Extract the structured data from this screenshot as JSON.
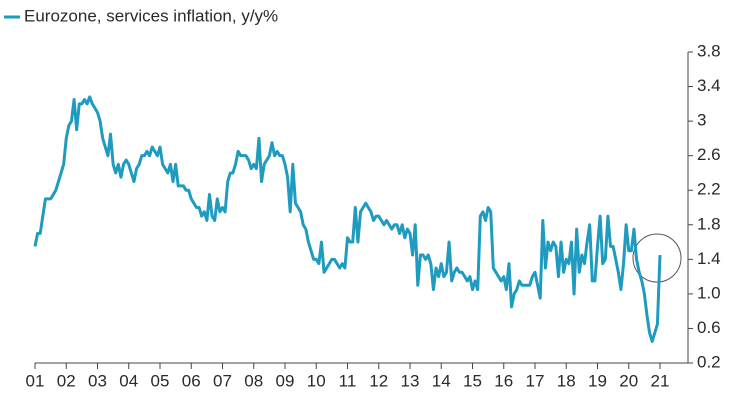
{
  "chart_data": {
    "type": "line",
    "categories": [
      "01",
      null,
      null,
      null,
      null,
      null,
      null,
      null,
      null,
      null,
      null,
      null,
      "02",
      null,
      null,
      null,
      null,
      null,
      null,
      null,
      null,
      null,
      null,
      null,
      "03",
      null,
      null,
      null,
      null,
      null,
      null,
      null,
      null,
      null,
      null,
      null,
      "04",
      null,
      null,
      null,
      null,
      null,
      null,
      null,
      null,
      null,
      null,
      null,
      "05",
      null,
      null,
      null,
      null,
      null,
      null,
      null,
      null,
      null,
      null,
      null,
      "06",
      null,
      null,
      null,
      null,
      null,
      null,
      null,
      null,
      null,
      null,
      null,
      "07",
      null,
      null,
      null,
      null,
      null,
      null,
      null,
      null,
      null,
      null,
      null,
      "08",
      null,
      null,
      null,
      null,
      null,
      null,
      null,
      null,
      null,
      null,
      null,
      "09",
      null,
      null,
      null,
      null,
      null,
      null,
      null,
      null,
      null,
      null,
      null,
      "10",
      null,
      null,
      null,
      null,
      null,
      null,
      null,
      null,
      null,
      null,
      null,
      "11",
      null,
      null,
      null,
      null,
      null,
      null,
      null,
      null,
      null,
      null,
      null,
      "12",
      null,
      null,
      null,
      null,
      null,
      null,
      null,
      null,
      null,
      null,
      null,
      "13",
      null,
      null,
      null,
      null,
      null,
      null,
      null,
      null,
      null,
      null,
      null,
      "14",
      null,
      null,
      null,
      null,
      null,
      null,
      null,
      null,
      null,
      null,
      null,
      "15",
      null,
      null,
      null,
      null,
      null,
      null,
      null,
      null,
      null,
      null,
      null,
      "16",
      null,
      null,
      null,
      null,
      null,
      null,
      null,
      null,
      null,
      null,
      null,
      "17",
      null,
      null,
      null,
      null,
      null,
      null,
      null,
      null,
      null,
      null,
      null,
      "18",
      null,
      null,
      null,
      null,
      null,
      null,
      null,
      null,
      null,
      null,
      null,
      "19",
      null,
      null,
      null,
      null,
      null,
      null,
      null,
      null,
      null,
      null,
      null,
      "20",
      null,
      null,
      null,
      null,
      null,
      null,
      null,
      null,
      null,
      null,
      null,
      "21"
    ],
    "series": [
      {
        "name": "Eurozone, services inflation, y/y%",
        "color": "#1e9bbf",
        "values": [
          1.55,
          1.7,
          1.7,
          1.9,
          2.1,
          2.1,
          2.1,
          2.15,
          2.2,
          2.3,
          2.4,
          2.5,
          2.8,
          2.95,
          3.0,
          3.25,
          2.9,
          3.2,
          3.2,
          3.25,
          3.2,
          3.28,
          3.2,
          3.15,
          3.1,
          3.0,
          2.8,
          2.7,
          2.6,
          2.85,
          2.5,
          2.4,
          2.5,
          2.35,
          2.5,
          2.55,
          2.5,
          2.4,
          2.3,
          2.45,
          2.5,
          2.6,
          2.6,
          2.65,
          2.6,
          2.7,
          2.65,
          2.6,
          2.7,
          2.5,
          2.45,
          2.4,
          2.5,
          2.3,
          2.5,
          2.25,
          2.25,
          2.25,
          2.2,
          2.2,
          2.1,
          2.05,
          2.0,
          2.0,
          1.9,
          1.95,
          1.85,
          2.15,
          1.9,
          1.85,
          2.1,
          1.95,
          2.0,
          1.95,
          2.3,
          2.4,
          2.4,
          2.5,
          2.65,
          2.6,
          2.6,
          2.6,
          2.55,
          2.45,
          2.5,
          2.45,
          2.8,
          2.3,
          2.5,
          2.55,
          2.6,
          2.75,
          2.6,
          2.65,
          2.6,
          2.6,
          2.5,
          2.35,
          1.95,
          2.5,
          2.05,
          2.0,
          1.95,
          1.8,
          1.75,
          1.6,
          1.5,
          1.4,
          1.4,
          1.35,
          1.6,
          1.25,
          1.3,
          1.35,
          1.4,
          1.4,
          1.35,
          1.3,
          1.35,
          1.3,
          1.65,
          1.6,
          1.6,
          2.0,
          1.6,
          1.95,
          2.0,
          2.05,
          2.0,
          1.95,
          1.85,
          1.9,
          1.9,
          1.85,
          1.8,
          1.85,
          1.8,
          1.75,
          1.8,
          1.8,
          1.7,
          1.8,
          1.65,
          1.75,
          1.7,
          1.45,
          1.8,
          1.1,
          1.45,
          1.45,
          1.4,
          1.45,
          1.35,
          1.05,
          1.3,
          1.2,
          1.35,
          1.2,
          1.25,
          1.6,
          1.15,
          1.25,
          1.3,
          1.25,
          1.25,
          1.2,
          1.15,
          1.2,
          1.05,
          1.15,
          1.05,
          1.9,
          1.95,
          1.85,
          2.0,
          1.95,
          1.3,
          1.25,
          1.2,
          1.15,
          1.2,
          1.05,
          1.35,
          0.85,
          1.0,
          1.05,
          1.15,
          1.1,
          1.1,
          1.1,
          1.1,
          1.2,
          1.25,
          1.1,
          0.95,
          1.85,
          1.3,
          1.6,
          1.5,
          1.6,
          1.55,
          1.2,
          1.6,
          1.25,
          1.4,
          1.35,
          1.6,
          1.0,
          1.75,
          1.25,
          1.45,
          1.35,
          1.6,
          1.8,
          1.15,
          1.15,
          1.55,
          1.9,
          1.35,
          1.4,
          1.9,
          1.55,
          1.55,
          1.4,
          1.25,
          1.05,
          1.35,
          1.8,
          1.5,
          1.5,
          1.75,
          1.4,
          1.25,
          1.15,
          1.0,
          0.75,
          0.55,
          0.45,
          0.55,
          0.65,
          1.45
        ]
      }
    ],
    "ylim": [
      0.2,
      3.8
    ],
    "yticks": [
      3.8,
      3.4,
      3.0,
      2.6,
      2.2,
      1.8,
      1.4,
      {
        "value": 1,
        "label": "1.0"
      },
      0.6,
      0.2
    ],
    "y_axis_side": "right",
    "grid": false
  }
}
